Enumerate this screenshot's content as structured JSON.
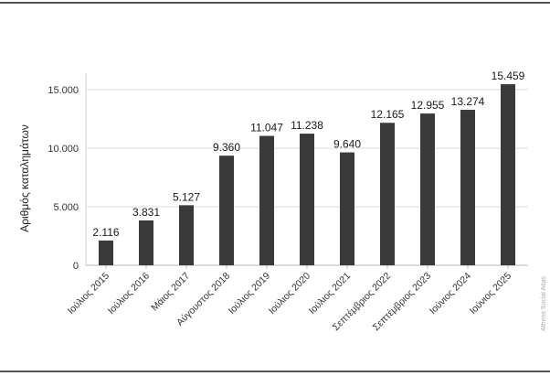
{
  "chart_data": {
    "type": "bar",
    "categories": [
      "Ιούλιος 2015",
      "Ιούλιος 2016",
      "Μάιος 2017",
      "Αύγουστος 2018",
      "Ιούλιος 2019",
      "Ιούλιος 2020",
      "Ιούλιος 2021",
      "Σεπτέμβριος 2022",
      "Σεπτέμβριος 2023",
      "Ιούνιος 2024",
      "Ιούνιος 2025"
    ],
    "values": [
      2116,
      3831,
      5127,
      9360,
      11047,
      11238,
      9640,
      12165,
      12955,
      13274,
      15459
    ],
    "value_labels": [
      "2.116",
      "3.831",
      "5.127",
      "9.360",
      "11.047",
      "11.238",
      "9.640",
      "12.165",
      "12.955",
      "13.274",
      "15.459"
    ],
    "ylabel": "Αριθμός καταλημάτων",
    "y_ticks": [
      0,
      5000,
      10000,
      15000
    ],
    "y_tick_labels": [
      "0",
      "5.000",
      "10.000",
      "15.000"
    ],
    "ylim": [
      0,
      16400
    ],
    "grid": true,
    "bar_color": "#3a3a3a",
    "grid_color": "#dddddd"
  },
  "source_credit": "Athens Social Atlas"
}
